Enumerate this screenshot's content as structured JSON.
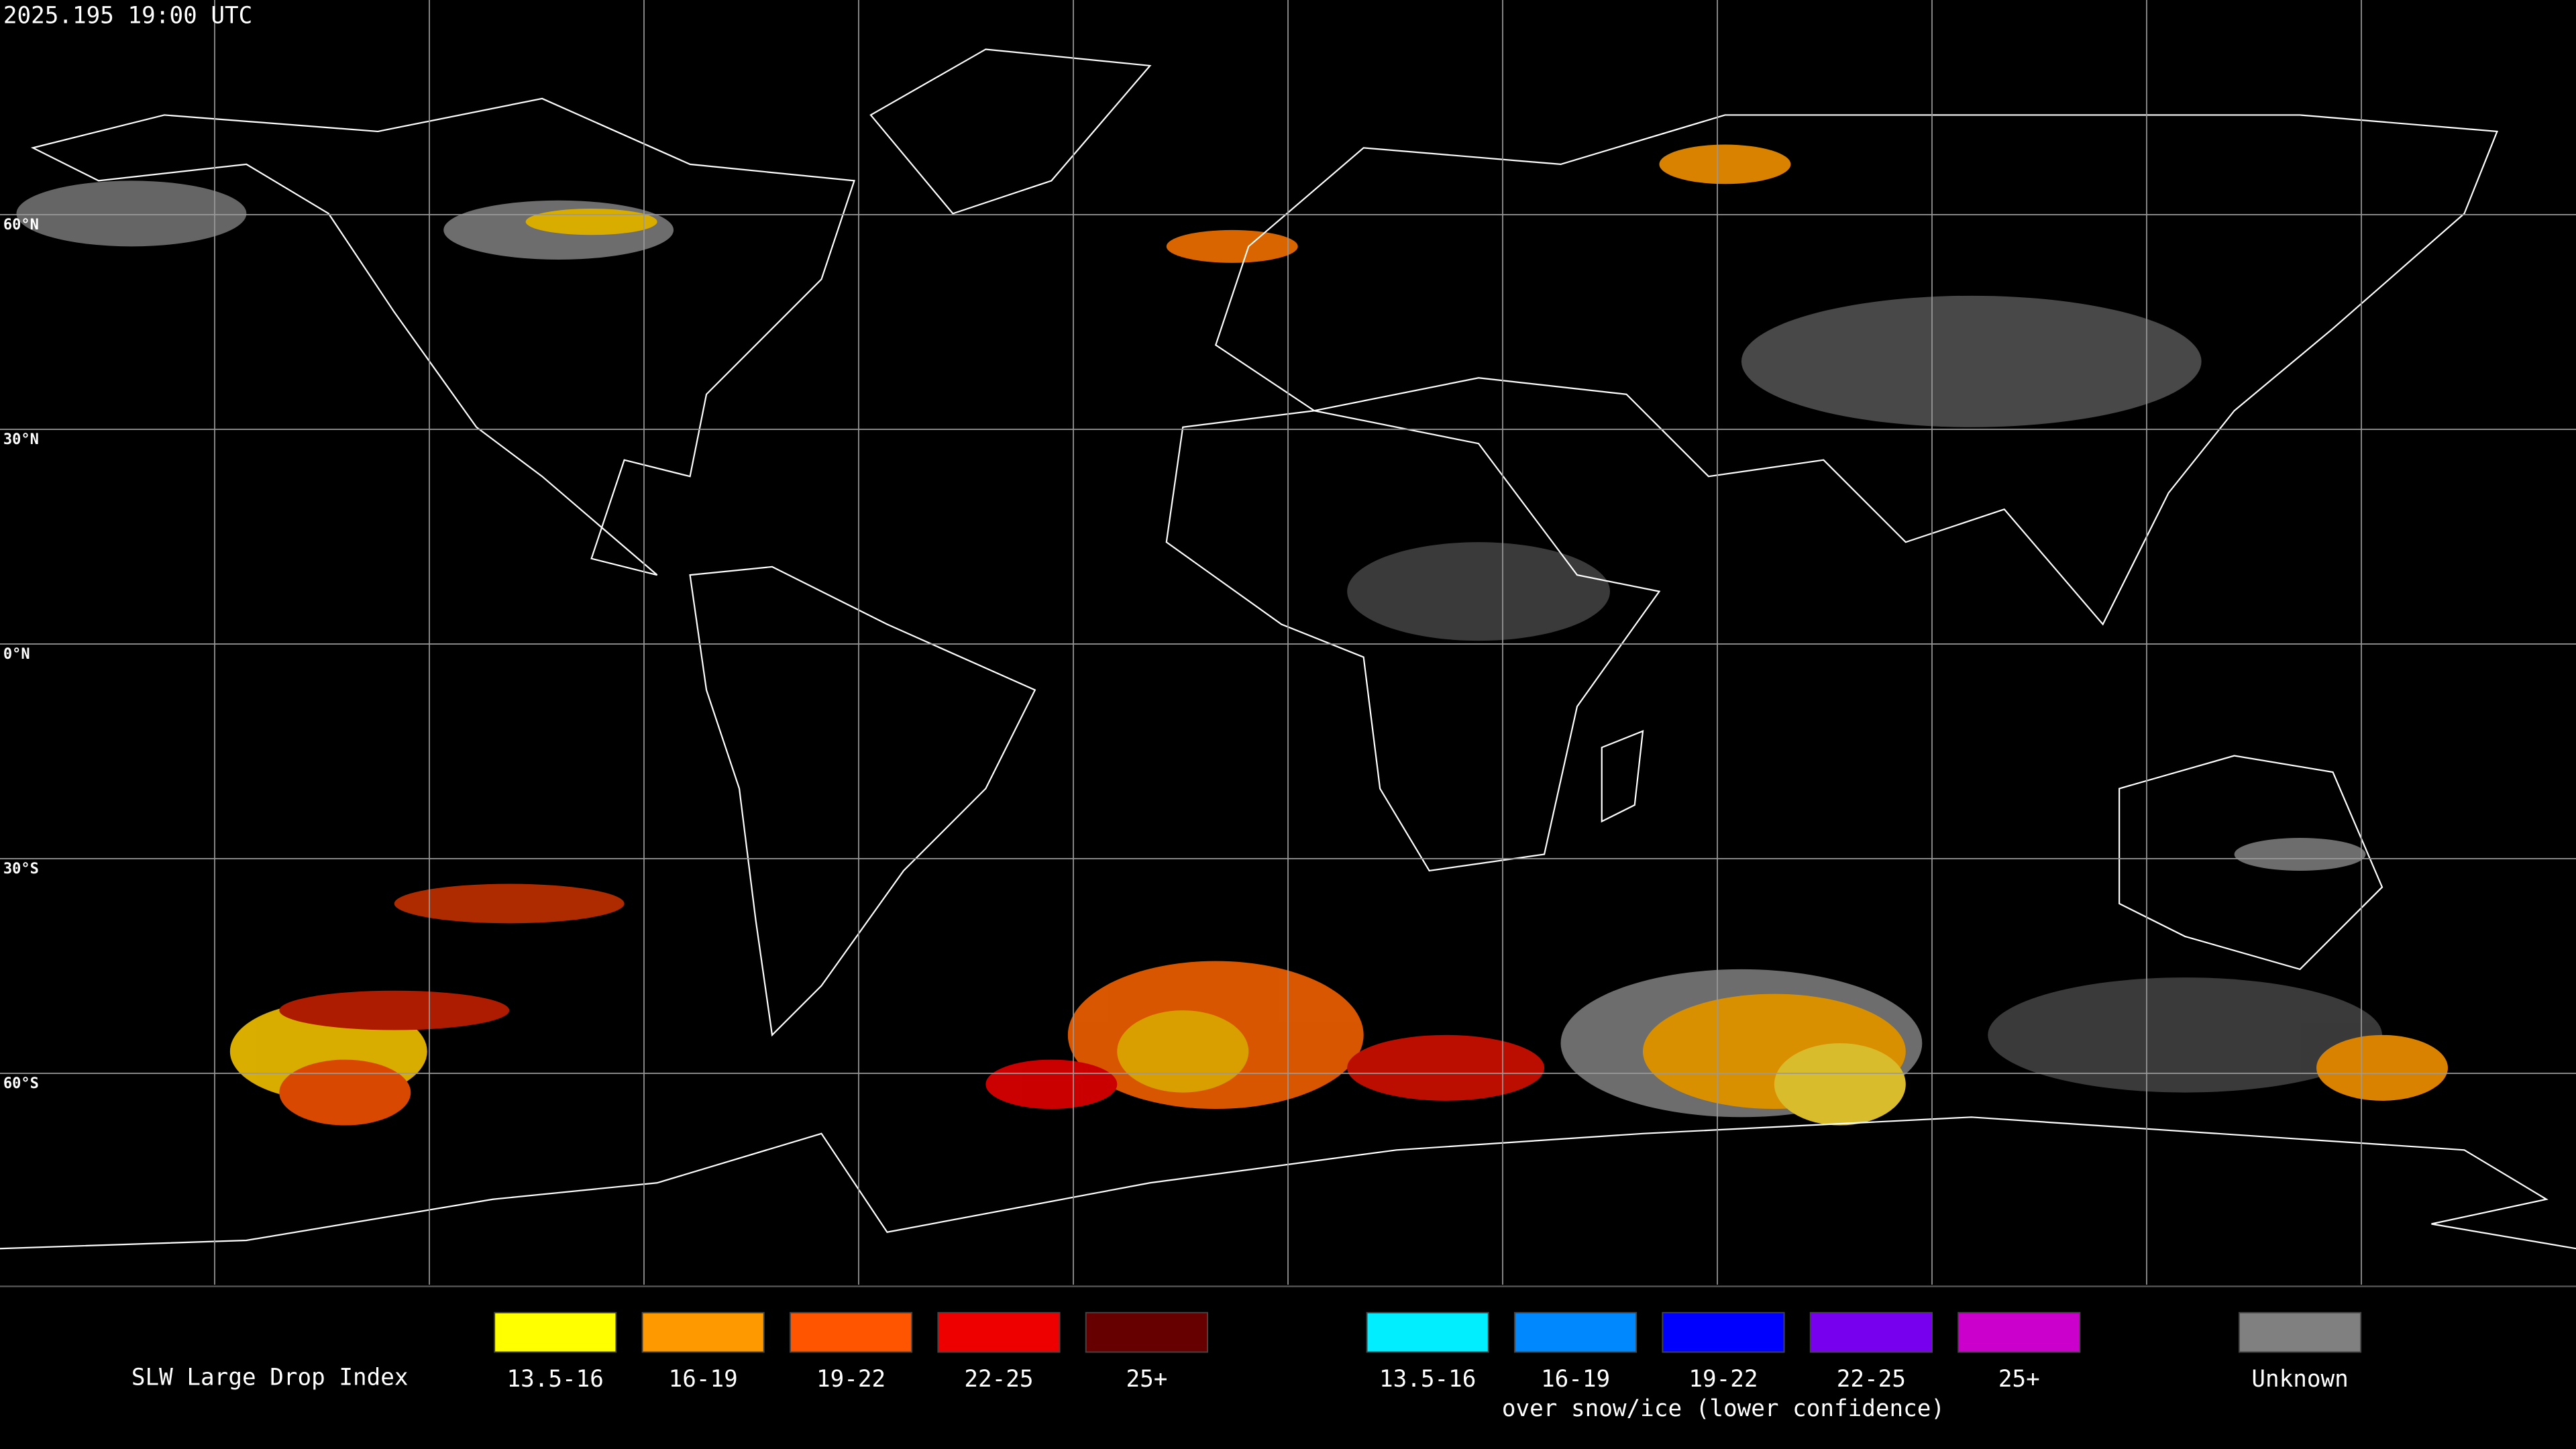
{
  "timestamp": "2025.195 19:00 UTC",
  "latitude_labels": [
    "60°N",
    "30°N",
    "0°N",
    "30°S",
    "60°S"
  ],
  "legend": {
    "title": "SLW Large Drop Index",
    "items": [
      {
        "label": "13.5-16",
        "color": "#ffff00"
      },
      {
        "label": "16-19",
        "color": "#ff9900"
      },
      {
        "label": "19-22",
        "color": "#ff5500"
      },
      {
        "label": "22-25",
        "color": "#ee0000"
      },
      {
        "label": "25+",
        "color": "#660000"
      }
    ],
    "snow_items": [
      {
        "label": "13.5-16",
        "color": "#00eeff"
      },
      {
        "label": "16-19",
        "color": "#0088ff"
      },
      {
        "label": "19-22",
        "color": "#0000ff"
      },
      {
        "label": "22-25",
        "color": "#7700ee"
      },
      {
        "label": "25+",
        "color": "#cc00cc"
      }
    ],
    "snow_caption": "over snow/ice (lower confidence)",
    "unknown": {
      "label": "Unknown",
      "color": "#808080"
    }
  }
}
